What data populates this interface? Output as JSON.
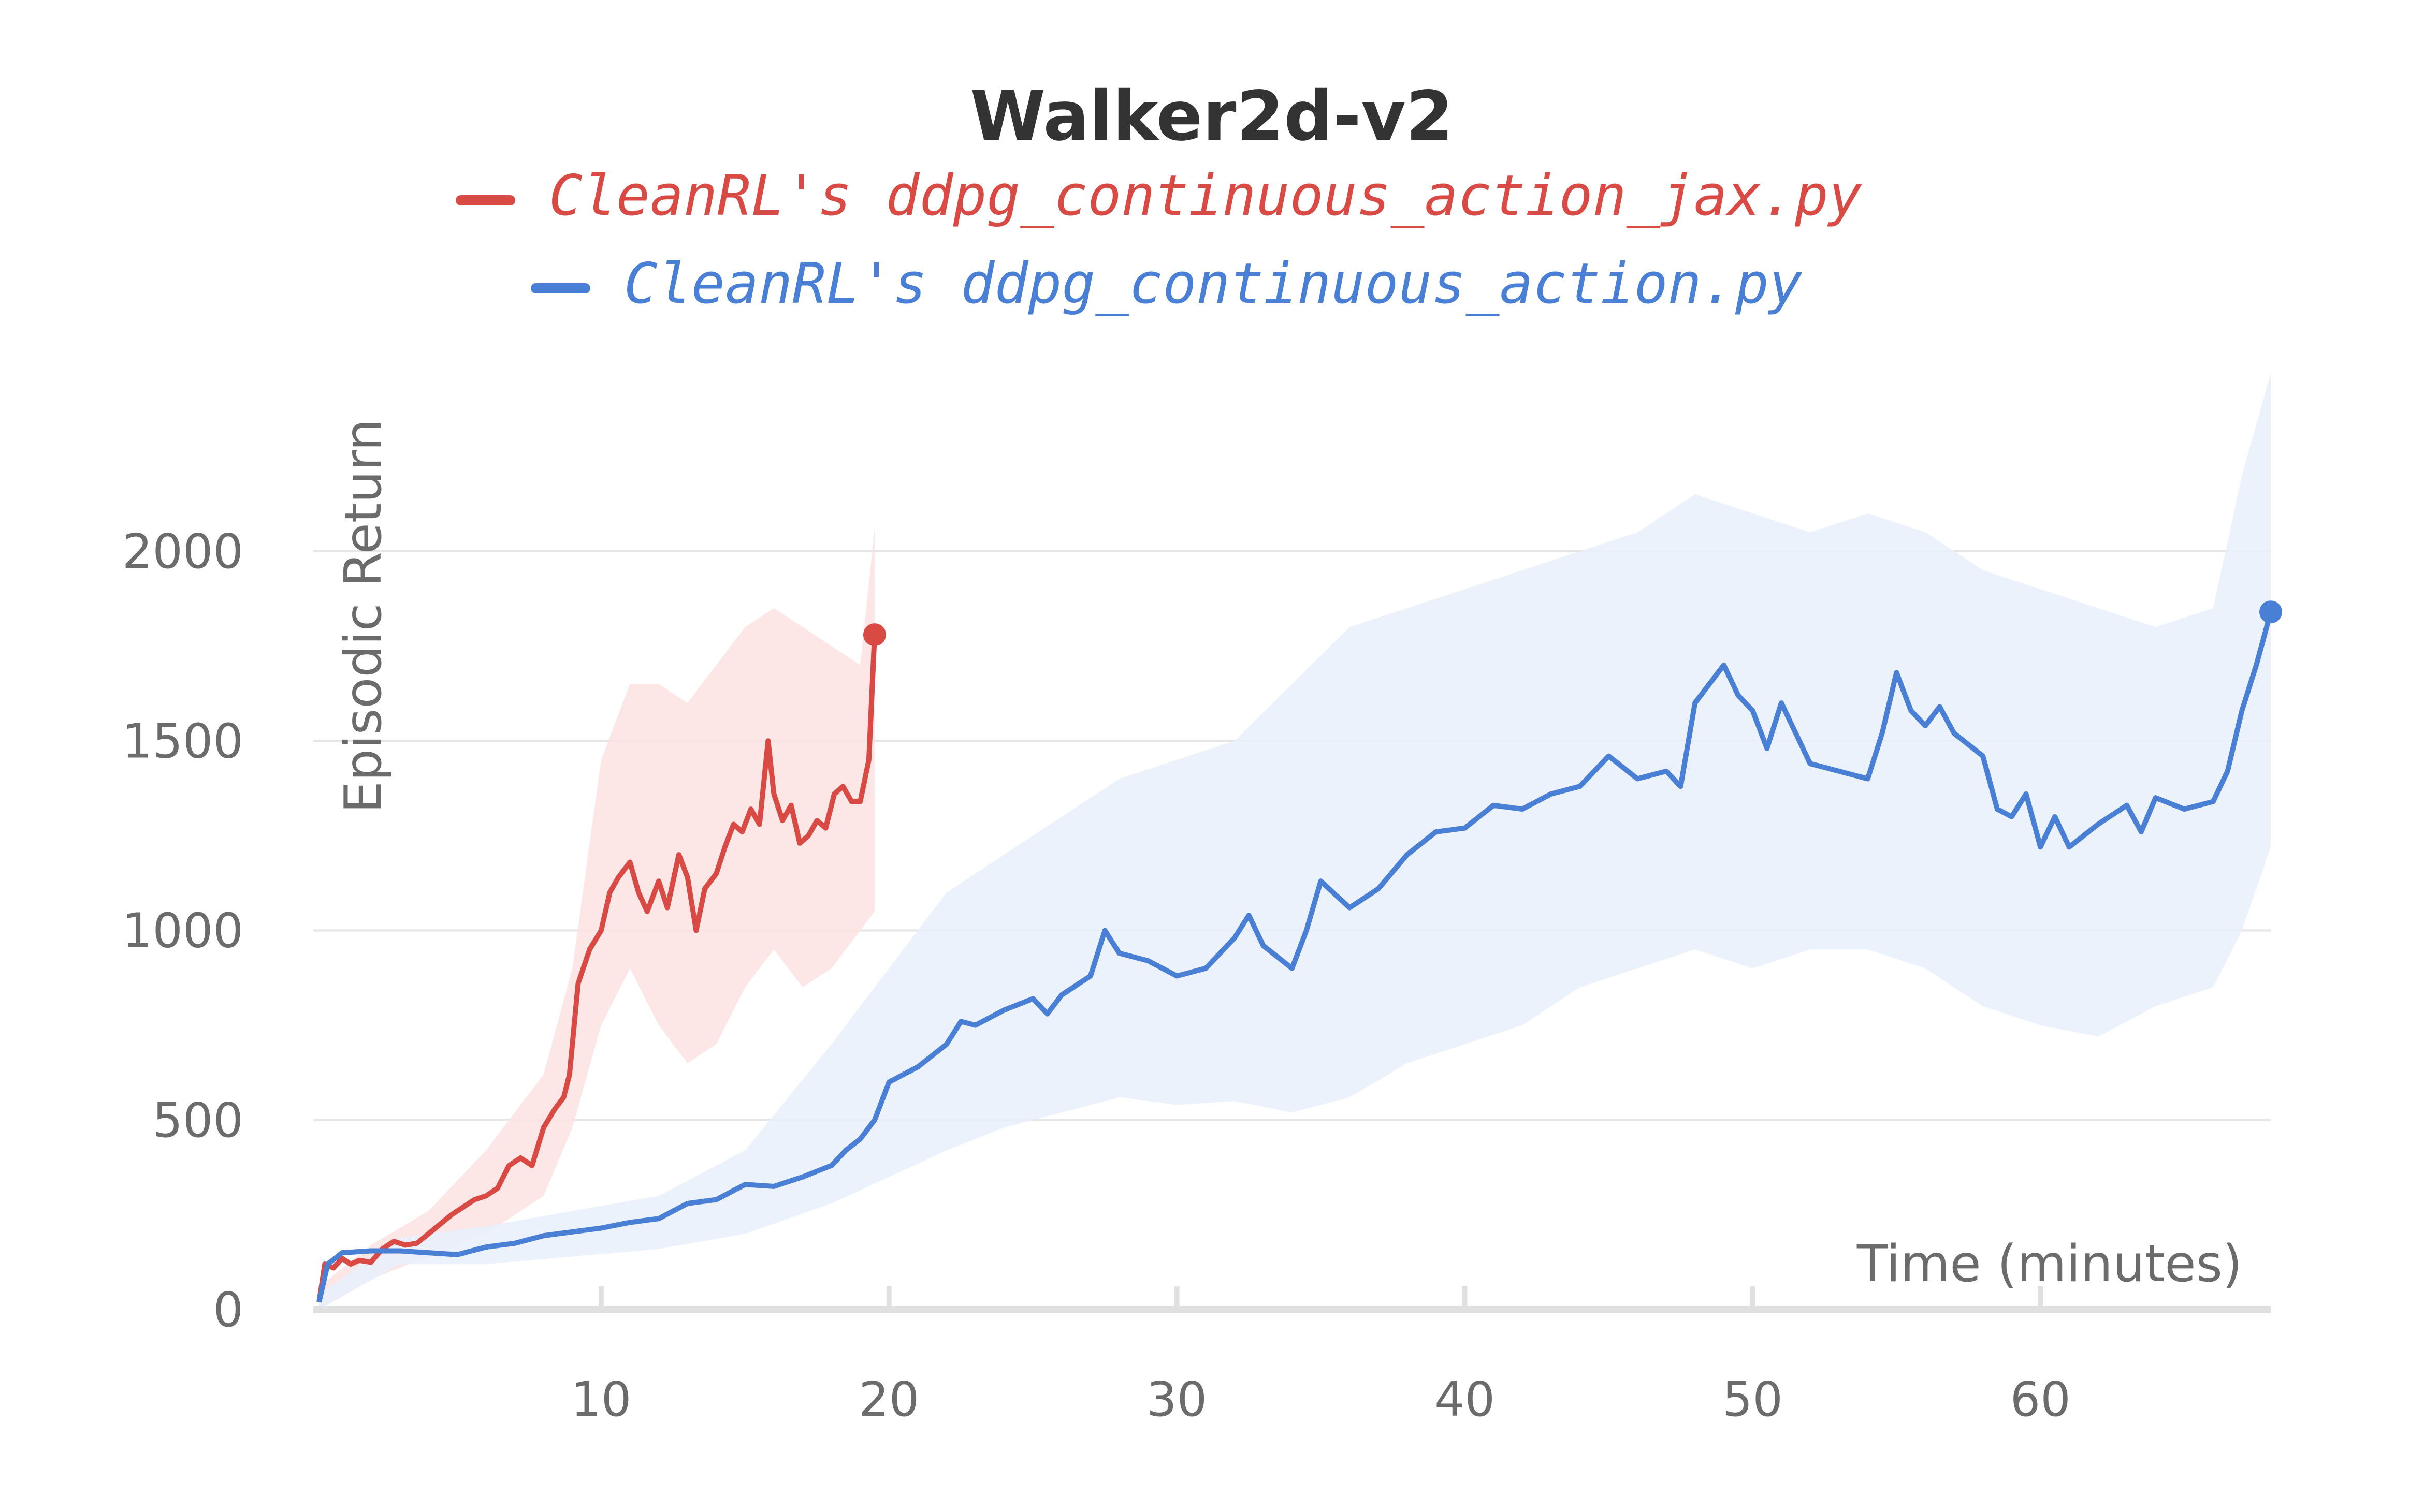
{
  "chart_data": {
    "type": "line",
    "title": "Walker2d-v2",
    "xlabel": "Time (minutes)",
    "ylabel": "Episodic Return",
    "xlim": [
      0,
      68
    ],
    "ylim": [
      0,
      2000
    ],
    "xticks": [
      10,
      20,
      30,
      40,
      50,
      60
    ],
    "yticks": [
      0,
      500,
      1000,
      1500,
      2000
    ],
    "grid": "horizontal",
    "legend_position": "top-center",
    "series": [
      {
        "name": "CleanRL's ddpg_continuous_action_jax.py",
        "color": "#d94a45",
        "band_color": "#fbe3e2",
        "points": [
          [
            0.2,
            20
          ],
          [
            0.4,
            120
          ],
          [
            0.7,
            110
          ],
          [
            1.0,
            135
          ],
          [
            1.3,
            120
          ],
          [
            1.6,
            130
          ],
          [
            2.0,
            125
          ],
          [
            2.4,
            160
          ],
          [
            2.8,
            180
          ],
          [
            3.2,
            170
          ],
          [
            3.6,
            175
          ],
          [
            4.0,
            200
          ],
          [
            4.4,
            225
          ],
          [
            4.8,
            250
          ],
          [
            5.2,
            270
          ],
          [
            5.6,
            290
          ],
          [
            6.0,
            300
          ],
          [
            6.4,
            320
          ],
          [
            6.8,
            380
          ],
          [
            7.2,
            400
          ],
          [
            7.6,
            380
          ],
          [
            8.0,
            480
          ],
          [
            8.4,
            530
          ],
          [
            8.7,
            560
          ],
          [
            8.9,
            620
          ],
          [
            9.2,
            860
          ],
          [
            9.6,
            950
          ],
          [
            10.0,
            1000
          ],
          [
            10.3,
            1100
          ],
          [
            10.6,
            1140
          ],
          [
            11.0,
            1180
          ],
          [
            11.3,
            1100
          ],
          [
            11.6,
            1050
          ],
          [
            12.0,
            1130
          ],
          [
            12.3,
            1060
          ],
          [
            12.7,
            1200
          ],
          [
            13.0,
            1140
          ],
          [
            13.3,
            1000
          ],
          [
            13.6,
            1110
          ],
          [
            14.0,
            1150
          ],
          [
            14.3,
            1220
          ],
          [
            14.6,
            1280
          ],
          [
            14.9,
            1260
          ],
          [
            15.2,
            1320
          ],
          [
            15.5,
            1280
          ],
          [
            15.8,
            1500
          ],
          [
            16.0,
            1360
          ],
          [
            16.3,
            1290
          ],
          [
            16.6,
            1330
          ],
          [
            16.9,
            1230
          ],
          [
            17.2,
            1250
          ],
          [
            17.5,
            1290
          ],
          [
            17.8,
            1270
          ],
          [
            18.1,
            1360
          ],
          [
            18.4,
            1380
          ],
          [
            18.7,
            1340
          ],
          [
            19.0,
            1340
          ],
          [
            19.3,
            1450
          ],
          [
            19.5,
            1780
          ]
        ],
        "band": [
          [
            0.2,
            0,
            60
          ],
          [
            2.0,
            80,
            170
          ],
          [
            4.0,
            140,
            260
          ],
          [
            6.0,
            200,
            420
          ],
          [
            8.0,
            300,
            620
          ],
          [
            9.0,
            480,
            900
          ],
          [
            10.0,
            750,
            1450
          ],
          [
            11.0,
            900,
            1650
          ],
          [
            12.0,
            750,
            1650
          ],
          [
            13.0,
            650,
            1600
          ],
          [
            14.0,
            700,
            1700
          ],
          [
            15.0,
            850,
            1800
          ],
          [
            16.0,
            950,
            1850
          ],
          [
            17.0,
            850,
            1800
          ],
          [
            18.0,
            900,
            1750
          ],
          [
            19.0,
            1000,
            1700
          ],
          [
            19.5,
            1050,
            2060
          ]
        ]
      },
      {
        "name": "CleanRL's ddpg_continuous_action.py",
        "color": "#4a7fd6",
        "band_color": "#e8f0fc",
        "points": [
          [
            0.2,
            20
          ],
          [
            0.5,
            120
          ],
          [
            1.0,
            150
          ],
          [
            2.0,
            155
          ],
          [
            3.0,
            155
          ],
          [
            4.0,
            150
          ],
          [
            5.0,
            145
          ],
          [
            6.0,
            165
          ],
          [
            7.0,
            175
          ],
          [
            8.0,
            195
          ],
          [
            9.0,
            205
          ],
          [
            10.0,
            215
          ],
          [
            11.0,
            230
          ],
          [
            12.0,
            240
          ],
          [
            13.0,
            280
          ],
          [
            14.0,
            290
          ],
          [
            15.0,
            330
          ],
          [
            16.0,
            325
          ],
          [
            17.0,
            350
          ],
          [
            18.0,
            380
          ],
          [
            18.5,
            420
          ],
          [
            19.0,
            450
          ],
          [
            19.5,
            500
          ],
          [
            20.0,
            600
          ],
          [
            21.0,
            640
          ],
          [
            22.0,
            700
          ],
          [
            22.5,
            760
          ],
          [
            23.0,
            750
          ],
          [
            24.0,
            790
          ],
          [
            25.0,
            820
          ],
          [
            25.5,
            780
          ],
          [
            26.0,
            830
          ],
          [
            27.0,
            880
          ],
          [
            27.5,
            1000
          ],
          [
            28.0,
            940
          ],
          [
            29.0,
            920
          ],
          [
            30.0,
            880
          ],
          [
            31.0,
            900
          ],
          [
            32.0,
            980
          ],
          [
            32.5,
            1040
          ],
          [
            33.0,
            960
          ],
          [
            34.0,
            900
          ],
          [
            34.5,
            1000
          ],
          [
            35.0,
            1130
          ],
          [
            36.0,
            1060
          ],
          [
            37.0,
            1110
          ],
          [
            38.0,
            1200
          ],
          [
            39.0,
            1260
          ],
          [
            40.0,
            1270
          ],
          [
            41.0,
            1330
          ],
          [
            42.0,
            1320
          ],
          [
            43.0,
            1360
          ],
          [
            44.0,
            1380
          ],
          [
            45.0,
            1460
          ],
          [
            46.0,
            1400
          ],
          [
            47.0,
            1420
          ],
          [
            47.5,
            1380
          ],
          [
            48.0,
            1600
          ],
          [
            48.5,
            1650
          ],
          [
            49.0,
            1700
          ],
          [
            49.5,
            1620
          ],
          [
            50.0,
            1580
          ],
          [
            50.5,
            1480
          ],
          [
            51.0,
            1600
          ],
          [
            52.0,
            1440
          ],
          [
            53.0,
            1420
          ],
          [
            54.0,
            1400
          ],
          [
            54.5,
            1520
          ],
          [
            55.0,
            1680
          ],
          [
            55.5,
            1580
          ],
          [
            56.0,
            1540
          ],
          [
            56.5,
            1590
          ],
          [
            57.0,
            1520
          ],
          [
            58.0,
            1460
          ],
          [
            58.5,
            1320
          ],
          [
            59.0,
            1300
          ],
          [
            59.5,
            1360
          ],
          [
            60.0,
            1220
          ],
          [
            60.5,
            1300
          ],
          [
            61.0,
            1220
          ],
          [
            62.0,
            1280
          ],
          [
            63.0,
            1330
          ],
          [
            63.5,
            1260
          ],
          [
            64.0,
            1350
          ],
          [
            65.0,
            1320
          ],
          [
            66.0,
            1340
          ],
          [
            66.5,
            1420
          ],
          [
            67.0,
            1580
          ],
          [
            67.5,
            1700
          ],
          [
            68.0,
            1840
          ]
        ],
        "band": [
          [
            0.2,
            0,
            40
          ],
          [
            3.0,
            120,
            190
          ],
          [
            6.0,
            120,
            220
          ],
          [
            9.0,
            140,
            260
          ],
          [
            12.0,
            160,
            300
          ],
          [
            15.0,
            200,
            420
          ],
          [
            18.0,
            280,
            700
          ],
          [
            20.0,
            350,
            900
          ],
          [
            22.0,
            420,
            1100
          ],
          [
            24.0,
            480,
            1200
          ],
          [
            26.0,
            520,
            1300
          ],
          [
            28.0,
            560,
            1400
          ],
          [
            30.0,
            540,
            1450
          ],
          [
            32.0,
            550,
            1500
          ],
          [
            34.0,
            520,
            1650
          ],
          [
            36.0,
            560,
            1800
          ],
          [
            38.0,
            650,
            1850
          ],
          [
            40.0,
            700,
            1900
          ],
          [
            42.0,
            750,
            1950
          ],
          [
            44.0,
            850,
            2000
          ],
          [
            46.0,
            900,
            2050
          ],
          [
            48.0,
            950,
            2150
          ],
          [
            50.0,
            900,
            2100
          ],
          [
            52.0,
            950,
            2050
          ],
          [
            54.0,
            950,
            2100
          ],
          [
            56.0,
            900,
            2050
          ],
          [
            58.0,
            800,
            1950
          ],
          [
            60.0,
            750,
            1900
          ],
          [
            62.0,
            720,
            1850
          ],
          [
            64.0,
            800,
            1800
          ],
          [
            66.0,
            850,
            1850
          ],
          [
            67.0,
            1000,
            2200
          ],
          [
            68.0,
            1220,
            2470
          ]
        ]
      }
    ]
  }
}
